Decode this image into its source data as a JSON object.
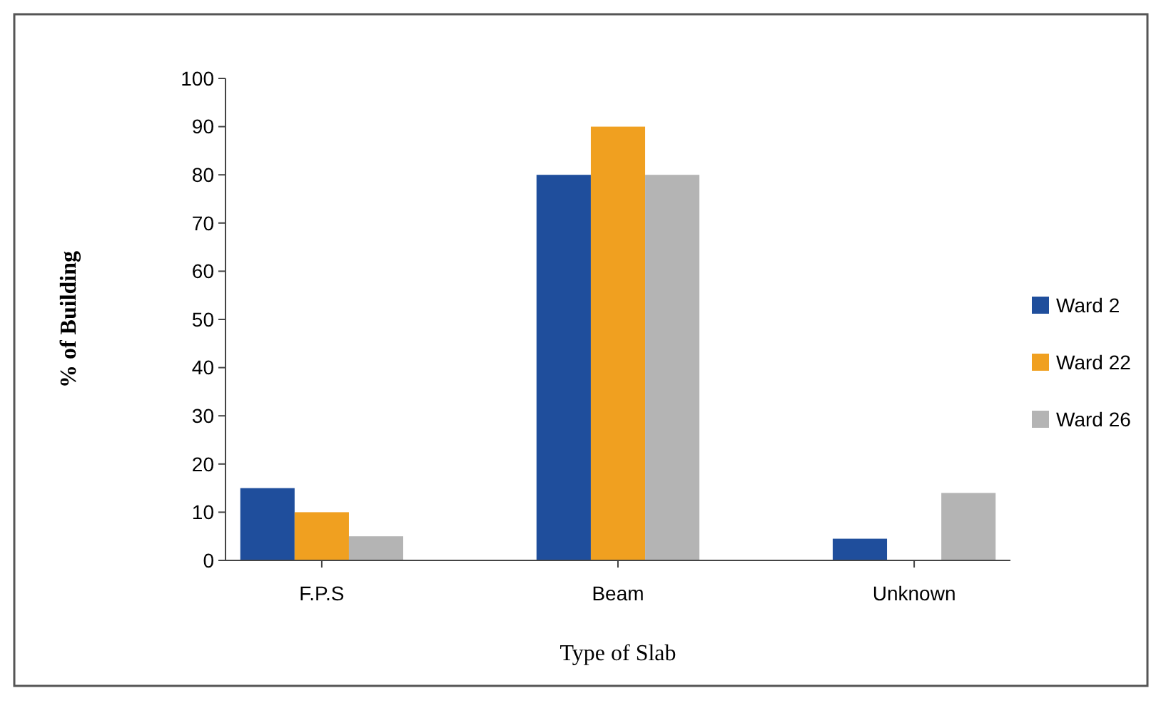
{
  "chart_data": {
    "type": "bar",
    "xlabel": "Type of Slab",
    "ylabel": "% of Building",
    "categories": [
      "F.P.S",
      "Beam",
      "Unknown"
    ],
    "series": [
      {
        "name": "Ward 2",
        "color": "#1f4e9c",
        "values": [
          15,
          80,
          4.5
        ]
      },
      {
        "name": "Ward 22",
        "color": "#f0a020",
        "values": [
          10,
          90,
          0
        ]
      },
      {
        "name": "Ward 26",
        "color": "#b4b4b4",
        "values": [
          5,
          80,
          14
        ]
      }
    ],
    "ylim": [
      0,
      100
    ],
    "yticks": [
      0,
      10,
      20,
      30,
      40,
      50,
      60,
      70,
      80,
      90,
      100
    ],
    "grid": false,
    "legend": "right"
  }
}
